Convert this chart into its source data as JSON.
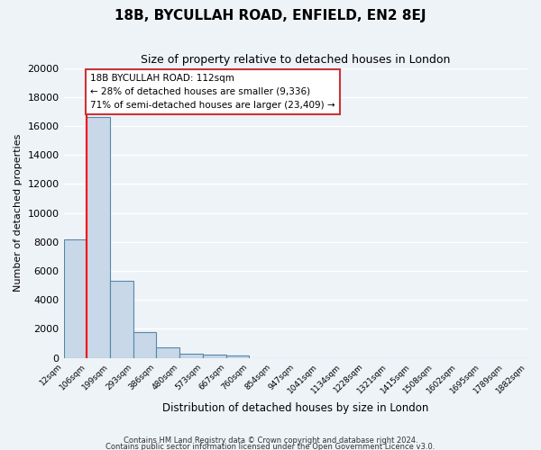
{
  "title": "18B, BYCULLAH ROAD, ENFIELD, EN2 8EJ",
  "subtitle": "Size of property relative to detached houses in London",
  "xlabel": "Distribution of detached houses by size in London",
  "ylabel": "Number of detached properties",
  "bar_heights": [
    8200,
    16600,
    5300,
    1750,
    700,
    300,
    200,
    150,
    0,
    0,
    0,
    0,
    0,
    0,
    0,
    0,
    0,
    0,
    0,
    0
  ],
  "bin_labels": [
    "12sqm",
    "106sqm",
    "199sqm",
    "293sqm",
    "386sqm",
    "480sqm",
    "573sqm",
    "667sqm",
    "760sqm",
    "854sqm",
    "947sqm",
    "1041sqm",
    "1134sqm",
    "1228sqm",
    "1321sqm",
    "1415sqm",
    "1508sqm",
    "1602sqm",
    "1695sqm",
    "1789sqm",
    "1882sqm"
  ],
  "bar_color": "#c8d8e8",
  "bar_edge_color": "#5588aa",
  "background_color": "#eef3f8",
  "grid_color": "#ffffff",
  "red_line_x": 1,
  "annotation_text": "18B BYCULLAH ROAD: 112sqm\n← 28% of detached houses are smaller (9,336)\n71% of semi-detached houses are larger (23,409) →",
  "ylim": [
    0,
    20000
  ],
  "yticks": [
    0,
    2000,
    4000,
    6000,
    8000,
    10000,
    12000,
    14000,
    16000,
    18000,
    20000
  ],
  "footer1": "Contains HM Land Registry data © Crown copyright and database right 2024.",
  "footer2": "Contains public sector information licensed under the Open Government Licence v3.0."
}
